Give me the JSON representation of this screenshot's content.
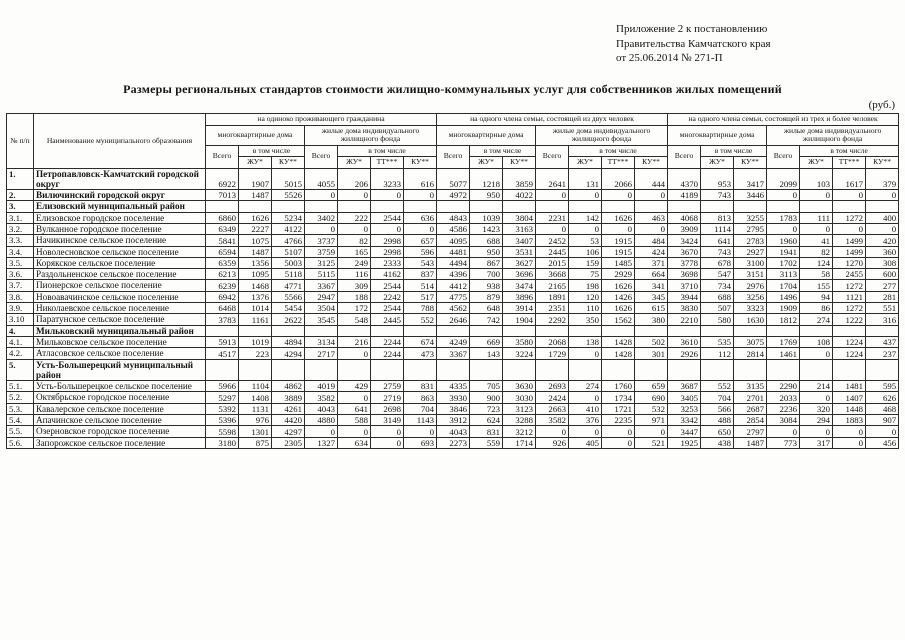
{
  "corner_note": {
    "line1": "Приложение 2 к постановлению",
    "line2": "Правительства Камчатского края",
    "line3": "от 25.06.2014  № 271-П"
  },
  "title": "Размеры  региональных  стандартов  стоимости  жилищно-коммунальных  услуг для собственников жилых помещений",
  "currency_note": "(руб.)",
  "table": {
    "headers": {
      "num": "№ п/п",
      "name": "Наименование муниципального образования",
      "group_single": "на  одиноко  проживающего гражданина",
      "group_two": "на  одного члена  семьи,  состоящей  из двух человек",
      "group_three": "на  одного члена  семьи,  состоящей  из трех и более человек",
      "mkd": "многоквартирные дома",
      "izhf": "жилые дома индивидуального жилищного фонда",
      "total": "Всего",
      "including": "в том числе",
      "zhu": "ЖУ*",
      "ku": "КУ**",
      "tt": "ТТ***"
    },
    "rows": [
      {
        "num": "1.",
        "name": "Петропавловск-Камчатский городской округ",
        "bold": true,
        "values": [
          6922,
          1907,
          5015,
          4055,
          206,
          3233,
          616,
          5077,
          1218,
          3859,
          2641,
          131,
          2066,
          444,
          4370,
          953,
          3417,
          2099,
          103,
          1617,
          379
        ]
      },
      {
        "num": "2.",
        "name": "Вилючинский городской округ",
        "bold": true,
        "values": [
          7013,
          1487,
          5526,
          0,
          0,
          0,
          0,
          4972,
          950,
          4022,
          0,
          0,
          0,
          0,
          4189,
          743,
          3446,
          0,
          0,
          0,
          0
        ]
      },
      {
        "num": "3.",
        "name": "Елизовский муниципальный район",
        "bold": true
      },
      {
        "num": "3.1.",
        "name": "Елизовское городское поселение",
        "values": [
          6860,
          1626,
          5234,
          3402,
          222,
          2544,
          636,
          4843,
          1039,
          3804,
          2231,
          142,
          1626,
          463,
          4068,
          813,
          3255,
          1783,
          111,
          1272,
          400
        ]
      },
      {
        "num": "3.2.",
        "name": "Вулканное городское поселение",
        "values": [
          6349,
          2227,
          4122,
          0,
          0,
          0,
          0,
          4586,
          1423,
          3163,
          0,
          0,
          0,
          0,
          3909,
          1114,
          2795,
          0,
          0,
          0,
          0
        ]
      },
      {
        "num": "3.3.",
        "name": "Начикинское сельское поселение",
        "values": [
          5841,
          1075,
          4766,
          3737,
          82,
          2998,
          657,
          4095,
          688,
          3407,
          2452,
          53,
          1915,
          484,
          3424,
          641,
          2783,
          1960,
          41,
          1499,
          420
        ]
      },
      {
        "num": "3.4.",
        "name": "Новолесновское сельское поселение",
        "values": [
          6594,
          1487,
          5107,
          3759,
          165,
          2998,
          596,
          4481,
          950,
          3531,
          2445,
          106,
          1915,
          424,
          3670,
          743,
          2927,
          1941,
          82,
          1499,
          360
        ]
      },
      {
        "num": "3.5.",
        "name": "Корякское сельское поселение",
        "values": [
          6359,
          1356,
          5003,
          3125,
          249,
          2333,
          543,
          4494,
          867,
          3627,
          2015,
          159,
          1485,
          371,
          3778,
          678,
          3100,
          1702,
          124,
          1270,
          308
        ]
      },
      {
        "num": "3.6.",
        "name": "Раздольненское сельское поселение",
        "values": [
          6213,
          1095,
          5118,
          5115,
          116,
          4162,
          837,
          4396,
          700,
          3696,
          3668,
          75,
          2929,
          664,
          3698,
          547,
          3151,
          3113,
          58,
          2455,
          600
        ]
      },
      {
        "num": "3.7.",
        "name": "Пионерское сельское поселение",
        "values": [
          6239,
          1468,
          4771,
          3367,
          309,
          2544,
          514,
          4412,
          938,
          3474,
          2165,
          198,
          1626,
          341,
          3710,
          734,
          2976,
          1704,
          155,
          1272,
          277
        ]
      },
      {
        "num": "3.8.",
        "name": "Новоавачинское сельское поселение",
        "values": [
          6942,
          1376,
          5566,
          2947,
          188,
          2242,
          517,
          4775,
          879,
          3896,
          1891,
          120,
          1426,
          345,
          3944,
          688,
          3256,
          1496,
          94,
          1121,
          281
        ]
      },
      {
        "num": "3.9.",
        "name": "Николаевское сельское поселение",
        "values": [
          6468,
          1014,
          5454,
          3504,
          172,
          2544,
          788,
          4562,
          648,
          3914,
          2351,
          110,
          1626,
          615,
          3830,
          507,
          3323,
          1909,
          86,
          1272,
          551
        ]
      },
      {
        "num": "3.10",
        "name": "Паратунское сельское поселение",
        "values": [
          3783,
          1161,
          2622,
          3545,
          548,
          2445,
          552,
          2646,
          742,
          1904,
          2292,
          350,
          1562,
          380,
          2210,
          580,
          1630,
          1812,
          274,
          1222,
          316
        ]
      },
      {
        "num": "4.",
        "name": "Мильковский муниципальный район",
        "bold": true
      },
      {
        "num": "4.1.",
        "name": "Мильковское сельское поселение",
        "values": [
          5913,
          1019,
          4894,
          3134,
          216,
          2244,
          674,
          4249,
          669,
          3580,
          2068,
          138,
          1428,
          502,
          3610,
          535,
          3075,
          1769,
          108,
          1224,
          437
        ]
      },
      {
        "num": "4.2.",
        "name": "Атласовское сельское поселение",
        "values": [
          4517,
          223,
          4294,
          2717,
          0,
          2244,
          473,
          3367,
          143,
          3224,
          1729,
          0,
          1428,
          301,
          2926,
          112,
          2814,
          1461,
          0,
          1224,
          237
        ]
      },
      {
        "num": "5.",
        "name": "Усть-Большерецкий муниципальный район",
        "bold": true
      },
      {
        "num": "5.1.",
        "name": "Усть-Большерецкое сельское поселение",
        "values": [
          5966,
          1104,
          4862,
          4019,
          429,
          2759,
          831,
          4335,
          705,
          3630,
          2693,
          274,
          1760,
          659,
          3687,
          552,
          3135,
          2290,
          214,
          1481,
          595
        ]
      },
      {
        "num": "5.2.",
        "name": "Октябрьское городское поселение",
        "values": [
          5297,
          1408,
          3889,
          3582,
          0,
          2719,
          863,
          3930,
          900,
          3030,
          2424,
          0,
          1734,
          690,
          3405,
          704,
          2701,
          2033,
          0,
          1407,
          626
        ]
      },
      {
        "num": "5.3.",
        "name": "Кавалерское сельское поселение",
        "values": [
          5392,
          1131,
          4261,
          4043,
          641,
          2698,
          704,
          3846,
          723,
          3123,
          2663,
          410,
          1721,
          532,
          3253,
          566,
          2687,
          2236,
          320,
          1448,
          468
        ]
      },
      {
        "num": "5.4.",
        "name": "Апачинское сельское поселение",
        "values": [
          5396,
          976,
          4420,
          4880,
          588,
          3149,
          1143,
          3912,
          624,
          3288,
          3582,
          376,
          2235,
          971,
          3342,
          488,
          2854,
          3084,
          294,
          1883,
          907
        ]
      },
      {
        "num": "5.5.",
        "name": "Озерновское городское поселение",
        "values": [
          5598,
          1301,
          4297,
          0,
          0,
          0,
          0,
          4043,
          831,
          3212,
          0,
          0,
          0,
          0,
          3447,
          650,
          2797,
          0,
          0,
          0,
          0
        ]
      },
      {
        "num": "5.6.",
        "name": "Запорожское сельское поселение",
        "values": [
          3180,
          875,
          2305,
          1327,
          634,
          0,
          693,
          2273,
          559,
          1714,
          926,
          405,
          0,
          521,
          1925,
          438,
          1487,
          773,
          317,
          0,
          456
        ]
      }
    ]
  }
}
